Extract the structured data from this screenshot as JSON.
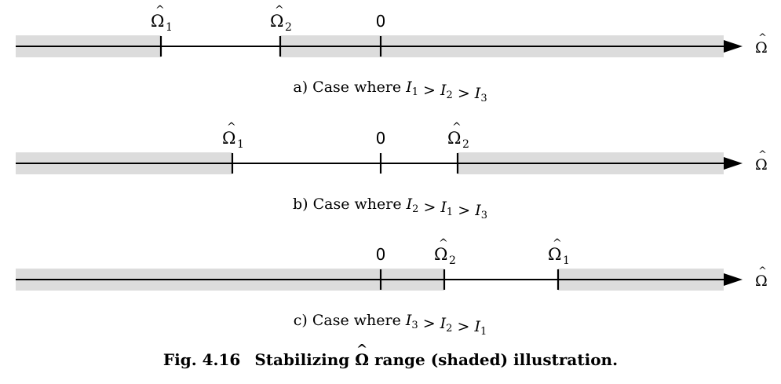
{
  "axis_symbol": "Ω",
  "zero_label": "0",
  "cases": [
    {
      "caption": {
        "prefix": "a)",
        "text": "Case where",
        "relation": [
          "I1",
          ">",
          "I2",
          ">",
          "I3"
        ]
      },
      "ticks": [
        {
          "label": "Ω",
          "sub": "1"
        },
        {
          "label": "Ω",
          "sub": "2"
        },
        {
          "label": "0",
          "sub": ""
        }
      ]
    },
    {
      "caption": {
        "prefix": "b)",
        "text": "Case where",
        "relation": [
          "I2",
          ">",
          "I1",
          ">",
          "I3"
        ]
      },
      "ticks": [
        {
          "label": "Ω",
          "sub": "1"
        },
        {
          "label": "0",
          "sub": ""
        },
        {
          "label": "Ω",
          "sub": "2"
        }
      ]
    },
    {
      "caption": {
        "prefix": "c)",
        "text": "Case where",
        "relation": [
          "I3",
          ">",
          "I2",
          ">",
          "I1"
        ]
      },
      "ticks": [
        {
          "label": "0",
          "sub": ""
        },
        {
          "label": "Ω",
          "sub": "2"
        },
        {
          "label": "Ω",
          "sub": "1"
        }
      ]
    }
  ],
  "figure_caption": {
    "number": "Fig. 4.16",
    "before": "Stabilizing",
    "symbol": "Ω",
    "after": "range (shaded) illustration."
  },
  "colors": {
    "shade": "#dcdcdc",
    "line": "#000000"
  }
}
